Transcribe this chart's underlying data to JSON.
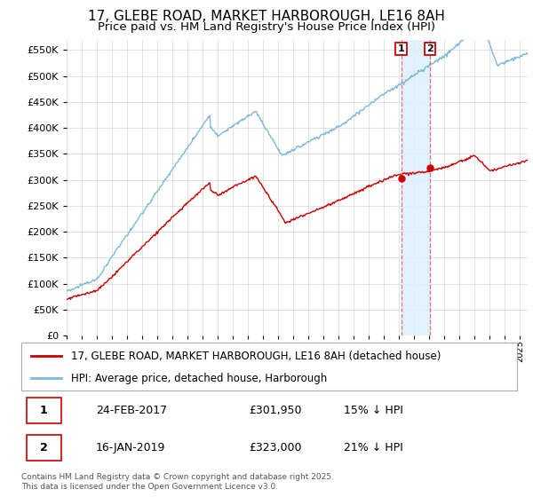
{
  "title_line1": "17, GLEBE ROAD, MARKET HARBOROUGH, LE16 8AH",
  "title_line2": "Price paid vs. HM Land Registry's House Price Index (HPI)",
  "legend_label1": "17, GLEBE ROAD, MARKET HARBOROUGH, LE16 8AH (detached house)",
  "legend_label2": "HPI: Average price, detached house, Harborough",
  "transaction1_num": "1",
  "transaction1_date": "24-FEB-2017",
  "transaction1_price": "£301,950",
  "transaction1_hpi": "15% ↓ HPI",
  "transaction2_num": "2",
  "transaction2_date": "16-JAN-2019",
  "transaction2_price": "£323,000",
  "transaction2_hpi": "21% ↓ HPI",
  "footnote": "Contains HM Land Registry data © Crown copyright and database right 2025.\nThis data is licensed under the Open Government Licence v3.0.",
  "vline1_year": 2017.13,
  "vline2_year": 2019.04,
  "marker1_value": 301950,
  "marker2_value": 323000,
  "hpi_color": "#7db9d8",
  "price_color": "#cc0000",
  "vline_color": "#dd6666",
  "shade_color": "#ddeeff",
  "background_color": "#ffffff",
  "grid_color": "#dddddd",
  "ylim": [
    0,
    570000
  ],
  "xlim_start": 1995,
  "xlim_end": 2025.5,
  "title_fontsize": 11,
  "subtitle_fontsize": 9.5
}
